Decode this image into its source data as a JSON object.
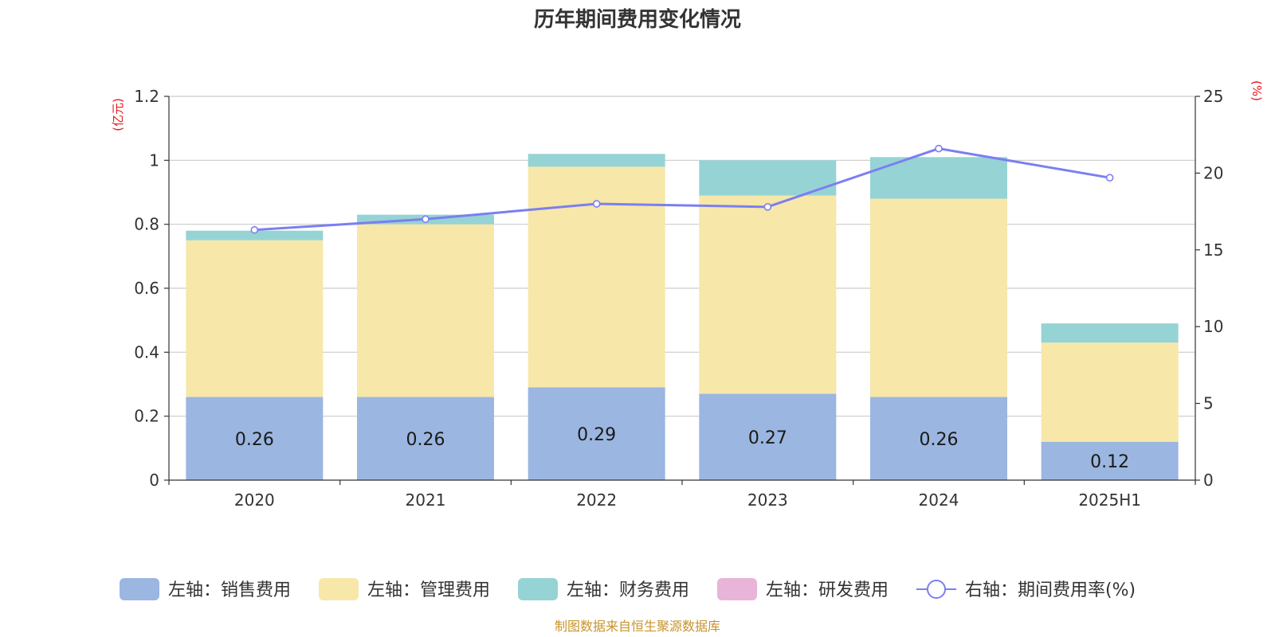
{
  "chart_data": {
    "type": "bar",
    "title": "历年期间费用变化情况",
    "categories": [
      "2020",
      "2021",
      "2022",
      "2023",
      "2024",
      "2025H1"
    ],
    "left_axis": {
      "unit": "(亿元)",
      "ylim": [
        0,
        1.2
      ],
      "ticks": [
        "0",
        "0.2",
        "0.4",
        "0.6",
        "0.8",
        "1",
        "1.2"
      ]
    },
    "right_axis": {
      "unit": "(%)",
      "ylim": [
        0,
        25
      ],
      "ticks": [
        "0",
        "5",
        "10",
        "15",
        "20",
        "25"
      ]
    },
    "series": [
      {
        "name": "左轴：销售费用",
        "kind": "bar",
        "color": "#9bb6e0",
        "values": [
          0.26,
          0.26,
          0.29,
          0.27,
          0.26,
          0.12
        ],
        "labels": [
          "0.26",
          "0.26",
          "0.29",
          "0.27",
          "0.26",
          "0.12"
        ]
      },
      {
        "name": "左轴：管理费用",
        "kind": "bar",
        "color": "#f7e7a9",
        "values": [
          0.49,
          0.54,
          0.69,
          0.62,
          0.62,
          0.31
        ]
      },
      {
        "name": "左轴：财务费用",
        "kind": "bar",
        "color": "#96d3d4",
        "values": [
          0.03,
          0.03,
          0.04,
          0.11,
          0.13,
          0.06
        ]
      },
      {
        "name": "左轴：研发费用",
        "kind": "bar",
        "color": "#e8b4d8",
        "values": [
          0,
          0,
          0,
          0,
          0,
          0
        ]
      },
      {
        "name": "右轴：期间费用率(%)",
        "kind": "line",
        "color": "#7b7ff0",
        "values": [
          16.3,
          17.0,
          18.0,
          17.8,
          21.6,
          19.7
        ]
      }
    ],
    "source": "制图数据来自恒生聚源数据库"
  }
}
